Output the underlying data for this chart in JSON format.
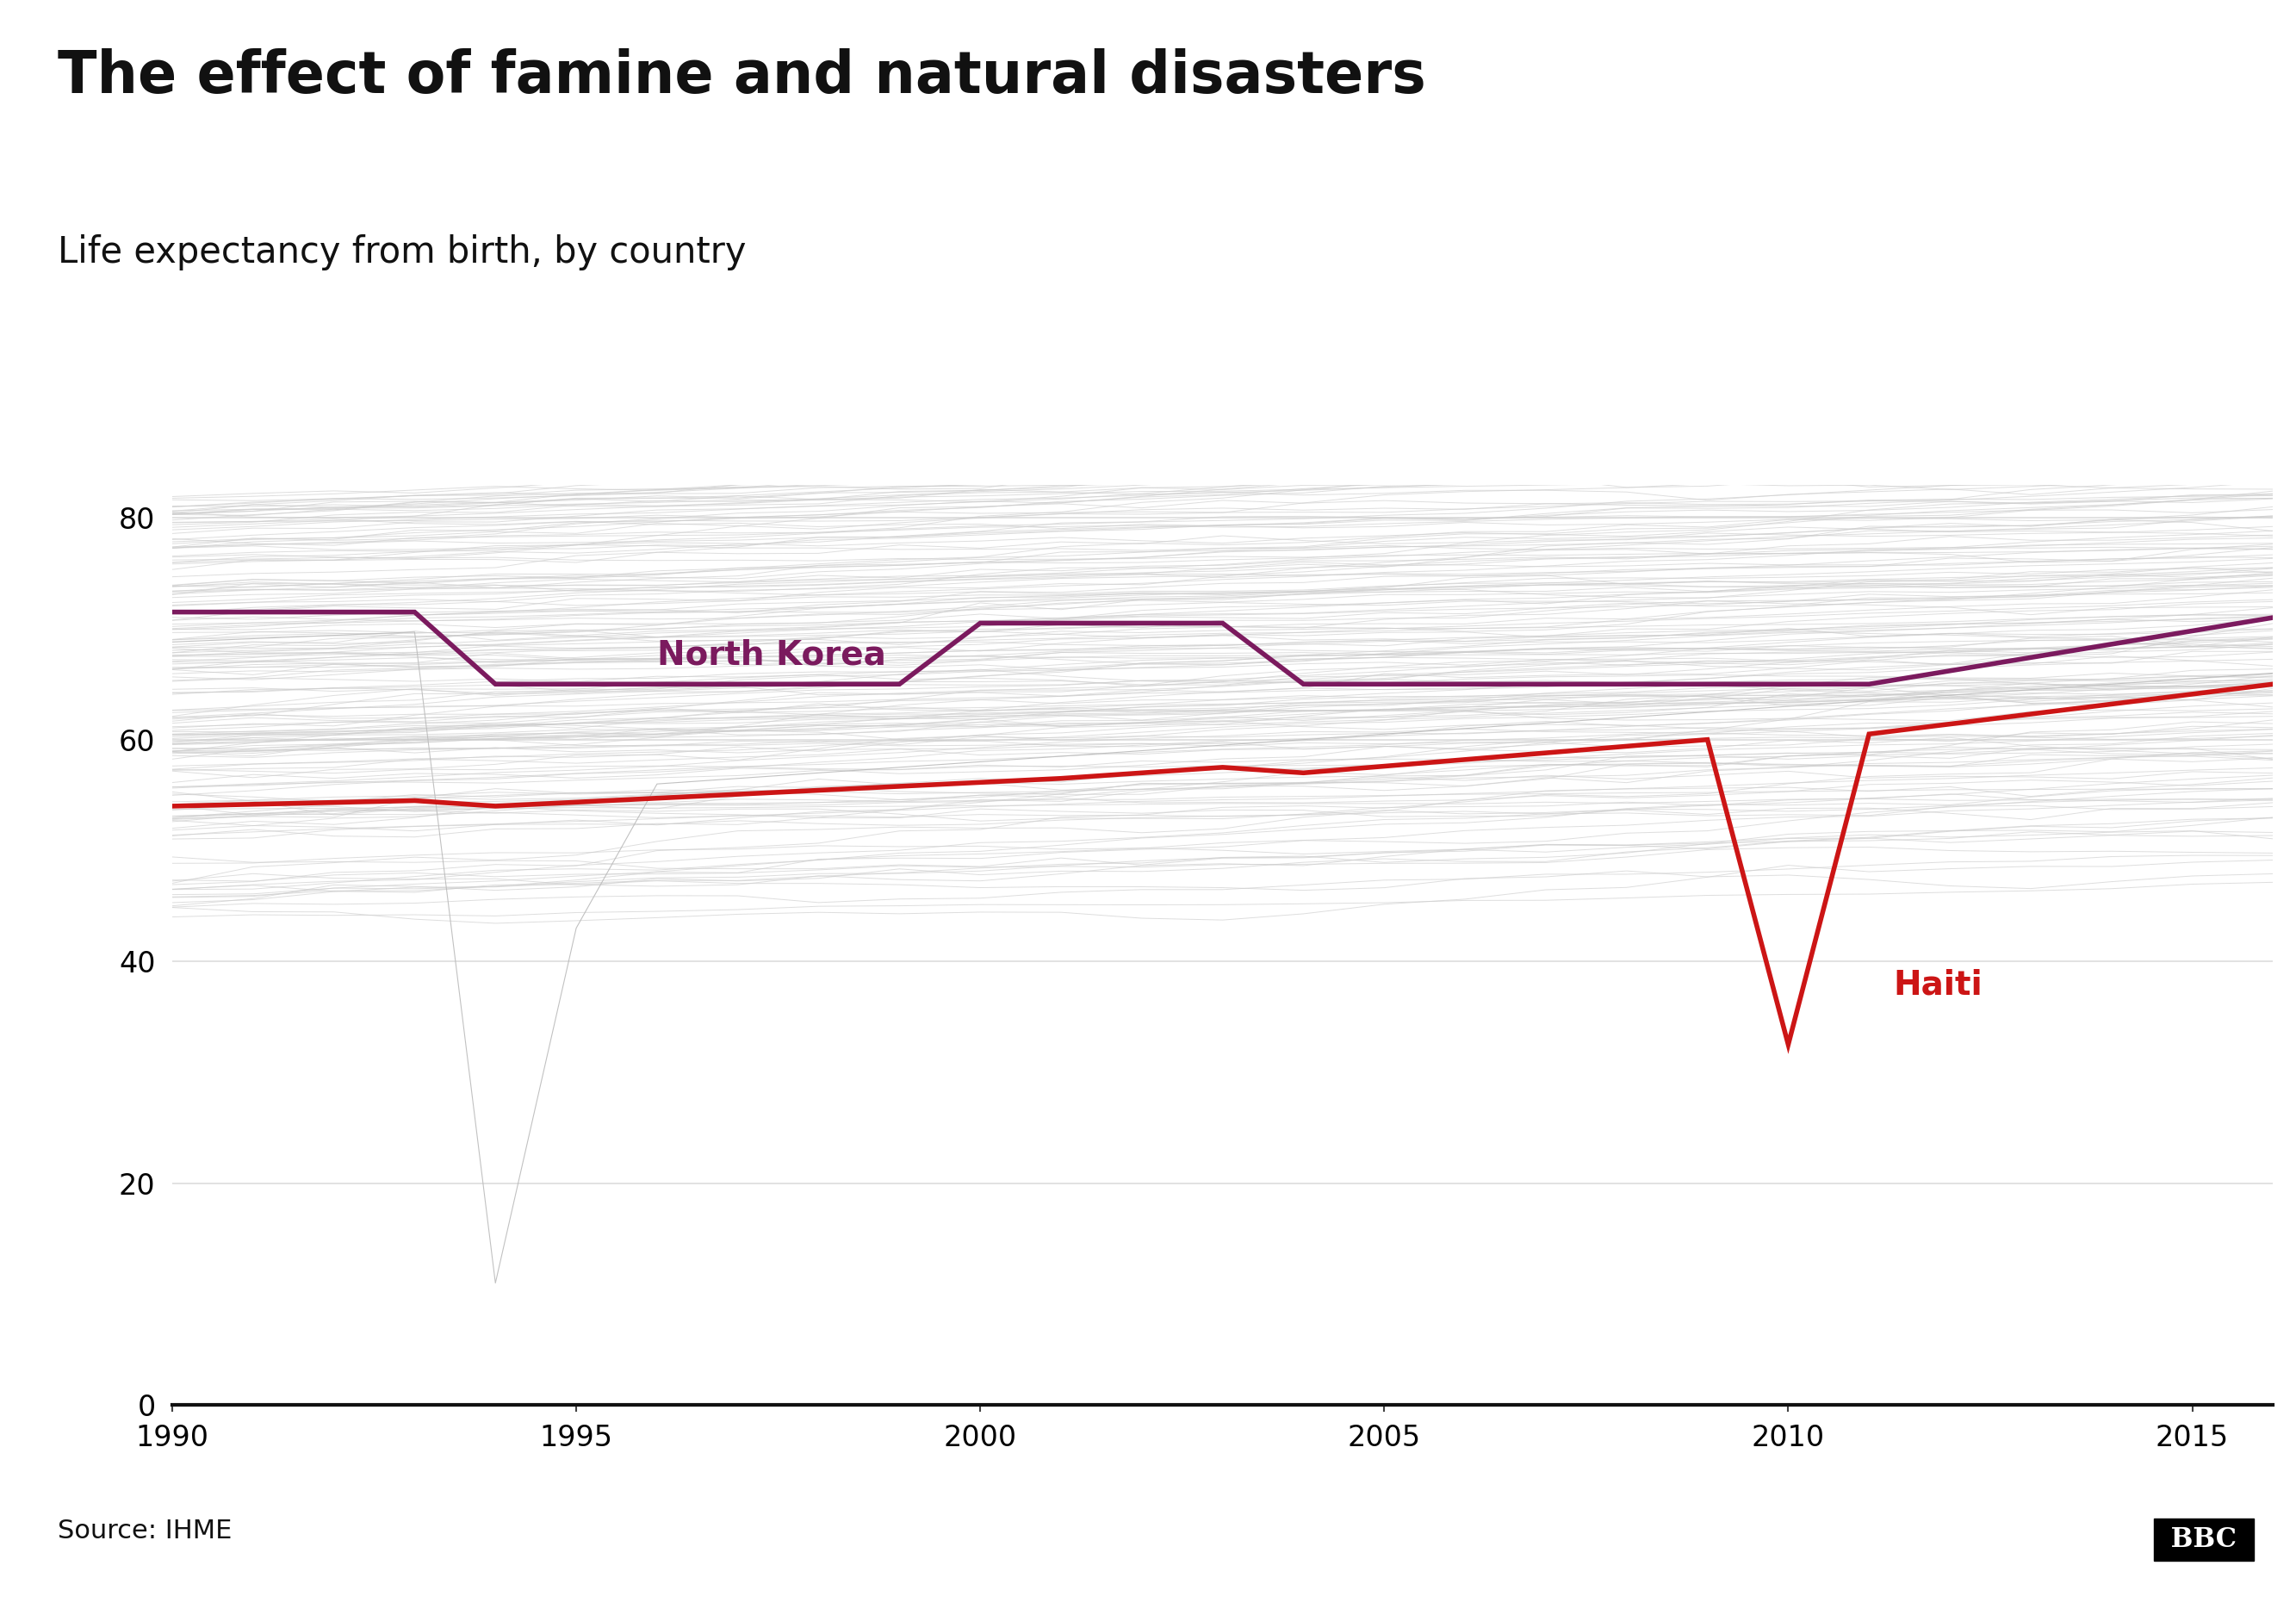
{
  "title": "The effect of famine and natural disasters",
  "subtitle": "Life expectancy from birth, by country",
  "source": "Source: IHME",
  "background_color": "#ffffff",
  "title_fontsize": 48,
  "subtitle_fontsize": 30,
  "source_fontsize": 22,
  "north_korea_color": "#7b1a5e",
  "haiti_color": "#cc1515",
  "background_line_color": "#cccccc",
  "north_korea_label": "North Korea",
  "haiti_label": "Haiti",
  "north_korea_data": {
    "years": [
      1990,
      1993,
      1994,
      1999,
      2000,
      2003,
      2004,
      2011,
      2016
    ],
    "values": [
      71.5,
      71.5,
      65.0,
      65.0,
      70.5,
      70.5,
      65.0,
      65.0,
      71.0
    ]
  },
  "haiti_data": {
    "years": [
      1990,
      1993,
      1994,
      2001,
      2003,
      2004,
      2009,
      2010,
      2011,
      2016
    ],
    "values": [
      54.0,
      54.5,
      54.0,
      56.5,
      57.5,
      57.0,
      60.0,
      32.5,
      60.5,
      65.0
    ]
  },
  "xlim": [
    1990,
    2016
  ],
  "ylim": [
    0,
    83
  ],
  "yticks": [
    0,
    20,
    40,
    60,
    80
  ],
  "xticks": [
    1990,
    1995,
    2000,
    2005,
    2010,
    2015
  ]
}
